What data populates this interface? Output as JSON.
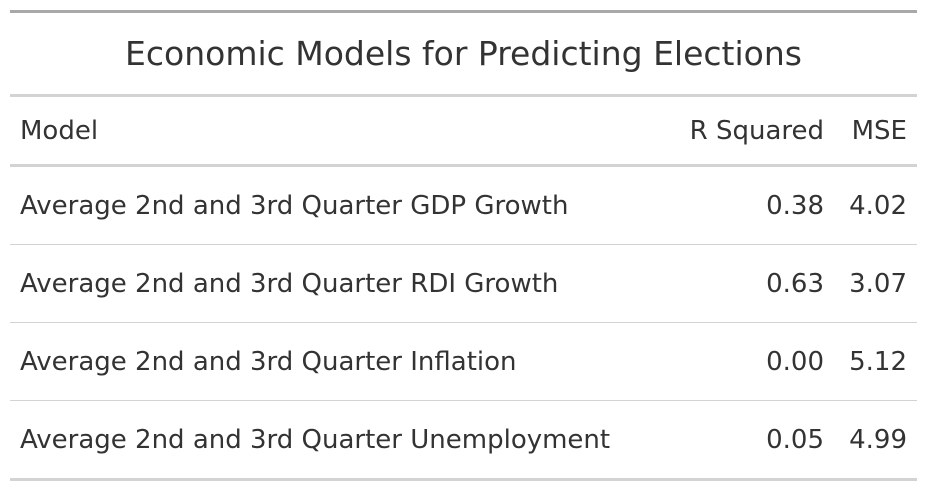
{
  "table": {
    "title": "Economic Models for Predicting Elections",
    "columns": {
      "model": "Model",
      "r_squared": "R Squared",
      "mse": "MSE"
    },
    "rows": [
      {
        "model": "Average 2nd and 3rd Quarter GDP Growth",
        "r_squared": "0.38",
        "mse": "4.02"
      },
      {
        "model": "Average 2nd and 3rd Quarter RDI Growth",
        "r_squared": "0.63",
        "mse": "3.07"
      },
      {
        "model": "Average 2nd and 3rd Quarter Inflation",
        "r_squared": "0.00",
        "mse": "5.12"
      },
      {
        "model": "Average 2nd and 3rd Quarter Unemployment",
        "r_squared": "0.05",
        "mse": "4.99"
      }
    ]
  },
  "colors": {
    "text": "#333333",
    "rule_dark": "#a8a8a8",
    "rule_light": "#d3d3d3",
    "background": "#ffffff"
  }
}
